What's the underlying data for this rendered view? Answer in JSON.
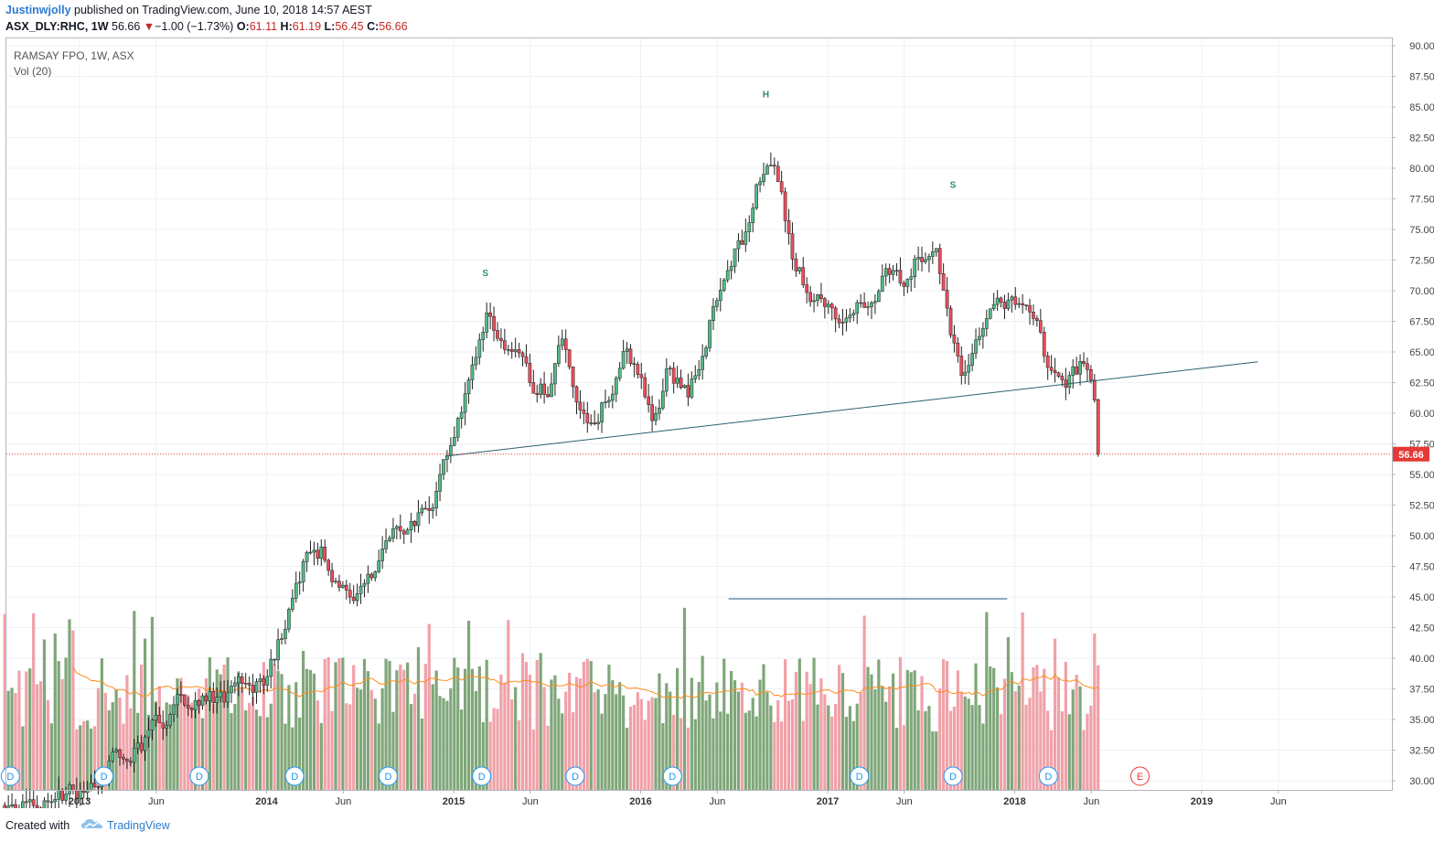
{
  "header": {
    "author": "Justinwjolly",
    "published_text": "published on TradingView.com, June 10, 2018 14:57 AEST",
    "symbol": "ASX_DLY:RHC, 1W",
    "last_price": "56.66",
    "change": "−1.00 (−1.73%)",
    "open_label": "O:",
    "open_value": "61.11",
    "high_label": "H:",
    "high_value": "61.19",
    "low_label": "L:",
    "low_value": "56.45",
    "close_label": "C:",
    "close_value": "56.66"
  },
  "legend": {
    "title": "RAMSAY FPO, 1W, ASX",
    "volume": "Vol (20)"
  },
  "footer": {
    "created_with": "Created with",
    "brand": "TradingView"
  },
  "colors": {
    "up": "#53b987",
    "down": "#eb4d5c",
    "vol_up": "#7fa679",
    "vol_down": "#f0a1a8",
    "vol_ma": "#ff8c1a",
    "trendline": "#2c5f6e",
    "price_line": "#e53935",
    "dividend": "#2196f3",
    "earnings": "#e53935"
  },
  "chart_data": {
    "type": "candlestick",
    "title": "RAMSAY FPO, 1W, ASX",
    "ylim": [
      29.5,
      90.8
    ],
    "price_ticks": [
      "30.00",
      "32.50",
      "35.00",
      "37.50",
      "40.00",
      "42.50",
      "45.00",
      "47.50",
      "50.00",
      "52.50",
      "55.00",
      "57.50",
      "60.00",
      "62.50",
      "65.00",
      "67.50",
      "70.00",
      "72.50",
      "75.00",
      "77.50",
      "80.00",
      "82.50",
      "85.00",
      "87.50",
      "90.00"
    ],
    "current_price_label": "56.66",
    "current_price": 56.66,
    "time_ticks": [
      {
        "label": "2013",
        "t": 2013.0,
        "bold": true
      },
      {
        "label": "Jun",
        "t": 2013.41,
        "bold": false
      },
      {
        "label": "2014",
        "t": 2014.0,
        "bold": true
      },
      {
        "label": "Jun",
        "t": 2014.41,
        "bold": false
      },
      {
        "label": "2015",
        "t": 2015.0,
        "bold": true
      },
      {
        "label": "Jun",
        "t": 2015.41,
        "bold": false
      },
      {
        "label": "2016",
        "t": 2016.0,
        "bold": true
      },
      {
        "label": "Jun",
        "t": 2016.41,
        "bold": false
      },
      {
        "label": "2017",
        "t": 2017.0,
        "bold": true
      },
      {
        "label": "Jun",
        "t": 2017.41,
        "bold": false
      },
      {
        "label": "2018",
        "t": 2018.0,
        "bold": true
      },
      {
        "label": "Jun",
        "t": 2018.41,
        "bold": false
      },
      {
        "label": "2019",
        "t": 2019.0,
        "bold": true
      },
      {
        "label": "Jun",
        "t": 2019.41,
        "bold": false
      }
    ],
    "price_path": [
      [
        2012.6,
        28.0
      ],
      [
        2013.0,
        29.0
      ],
      [
        2013.15,
        31.5
      ],
      [
        2013.3,
        32.5
      ],
      [
        2013.45,
        35.0
      ],
      [
        2013.6,
        37.0
      ],
      [
        2013.8,
        36.5
      ],
      [
        2014.0,
        38.5
      ],
      [
        2014.1,
        43.0
      ],
      [
        2014.2,
        47.5
      ],
      [
        2014.3,
        49.0
      ],
      [
        2014.4,
        45.0
      ],
      [
        2014.55,
        46.5
      ],
      [
        2014.65,
        50.0
      ],
      [
        2014.8,
        51.5
      ],
      [
        2014.9,
        53.5
      ],
      [
        2015.0,
        57.5
      ],
      [
        2015.12,
        63.5
      ],
      [
        2015.18,
        68.0
      ],
      [
        2015.3,
        66.0
      ],
      [
        2015.4,
        62.5
      ],
      [
        2015.5,
        62.0
      ],
      [
        2015.58,
        65.5
      ],
      [
        2015.7,
        59.0
      ],
      [
        2015.82,
        61.5
      ],
      [
        2015.92,
        66.0
      ],
      [
        2016.0,
        62.5
      ],
      [
        2016.06,
        58.5
      ],
      [
        2016.15,
        64.0
      ],
      [
        2016.25,
        61.0
      ],
      [
        2016.35,
        66.0
      ],
      [
        2016.45,
        72.5
      ],
      [
        2016.55,
        74.0
      ],
      [
        2016.62,
        79.0
      ],
      [
        2016.68,
        81.0
      ],
      [
        2016.75,
        79.0
      ],
      [
        2016.8,
        73.5
      ],
      [
        2016.9,
        70.0
      ],
      [
        2017.0,
        69.0
      ],
      [
        2017.1,
        68.0
      ],
      [
        2017.2,
        69.5
      ],
      [
        2017.3,
        71.5
      ],
      [
        2017.4,
        70.0
      ],
      [
        2017.48,
        72.5
      ],
      [
        2017.58,
        72.5
      ],
      [
        2017.65,
        66.0
      ],
      [
        2017.72,
        63.0
      ],
      [
        2017.8,
        66.5
      ],
      [
        2017.9,
        69.5
      ],
      [
        2018.0,
        69.0
      ],
      [
        2018.12,
        66.0
      ],
      [
        2018.2,
        62.5
      ],
      [
        2018.3,
        63.0
      ],
      [
        2018.38,
        64.0
      ],
      [
        2018.43,
        61.0
      ],
      [
        2018.45,
        56.66
      ]
    ],
    "seed": 17,
    "annotations": [
      {
        "label": "S",
        "t": 2015.17,
        "price": 71.2
      },
      {
        "label": "H",
        "t": 2016.67,
        "price": 85.8
      },
      {
        "label": "S",
        "t": 2017.67,
        "price": 78.4
      }
    ],
    "neckline": {
      "t1": 2014.96,
      "p1": 56.5,
      "t2": 2019.3,
      "p2": 64.2
    },
    "horizontal_line": {
      "t1": 2016.47,
      "t2": 2017.96,
      "price": 44.85
    },
    "volume": {
      "ma_period": 20
    },
    "dividends": {
      "label": "D",
      "t": [
        2012.63,
        2013.13,
        2013.64,
        2014.15,
        2014.65,
        2015.15,
        2015.65,
        2016.17,
        2017.17,
        2017.67,
        2018.18
      ]
    },
    "earnings": {
      "label": "E",
      "t": [
        2018.67
      ]
    }
  }
}
